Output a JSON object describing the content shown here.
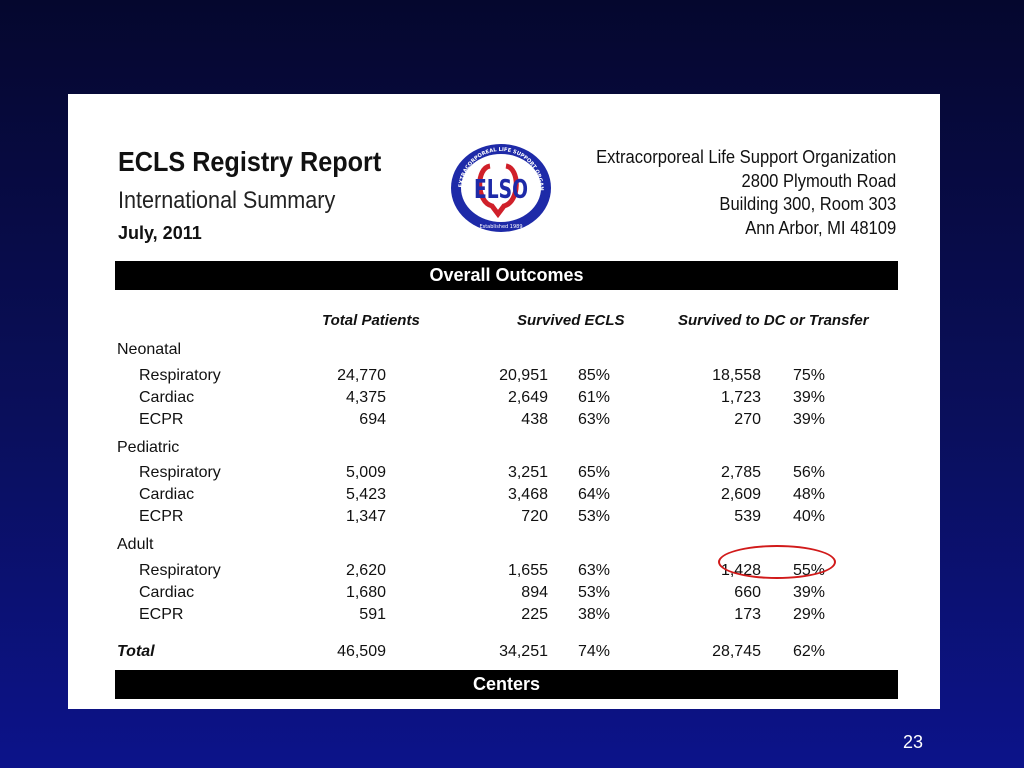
{
  "report": {
    "title": "ECLS Registry Report",
    "subtitle": "International Summary",
    "date": "July, 2011"
  },
  "logo": {
    "letters": "ELSO",
    "ring_text": "EXTRACORPOREAL LIFE SUPPORT ORGANIZATION",
    "established": "Established 1989"
  },
  "organization": {
    "name": "Extracorporeal Life Support Organization",
    "address_line1": "2800 Plymouth Road",
    "address_line2": "Building 300, Room 303",
    "address_line3": "Ann Arbor, MI 48109"
  },
  "sections": {
    "overall_outcomes": "Overall Outcomes",
    "centers": "Centers"
  },
  "table": {
    "headers": {
      "total_patients": "Total Patients",
      "survived_ecls": "Survived ECLS",
      "survived_dc": "Survived to DC or Transfer"
    },
    "groups": [
      {
        "name": "Neonatal",
        "rows": [
          {
            "label": "Respiratory",
            "total": "24,770",
            "ecls": "20,951",
            "ecls_pct": "85%",
            "dc": "18,558",
            "dc_pct": "75%"
          },
          {
            "label": "Cardiac",
            "total": "4,375",
            "ecls": "2,649",
            "ecls_pct": "61%",
            "dc": "1,723",
            "dc_pct": "39%"
          },
          {
            "label": "ECPR",
            "total": "694",
            "ecls": "438",
            "ecls_pct": "63%",
            "dc": "270",
            "dc_pct": "39%"
          }
        ]
      },
      {
        "name": "Pediatric",
        "rows": [
          {
            "label": "Respiratory",
            "total": "5,009",
            "ecls": "3,251",
            "ecls_pct": "65%",
            "dc": "2,785",
            "dc_pct": "56%"
          },
          {
            "label": "Cardiac",
            "total": "5,423",
            "ecls": "3,468",
            "ecls_pct": "64%",
            "dc": "2,609",
            "dc_pct": "48%"
          },
          {
            "label": "ECPR",
            "total": "1,347",
            "ecls": "720",
            "ecls_pct": "53%",
            "dc": "539",
            "dc_pct": "40%"
          }
        ]
      },
      {
        "name": "Adult",
        "rows": [
          {
            "label": "Respiratory",
            "total": "2,620",
            "ecls": "1,655",
            "ecls_pct": "63%",
            "dc": "1,428",
            "dc_pct": "55%"
          },
          {
            "label": "Cardiac",
            "total": "1,680",
            "ecls": "894",
            "ecls_pct": "53%",
            "dc": "660",
            "dc_pct": "39%"
          },
          {
            "label": "ECPR",
            "total": "591",
            "ecls": "225",
            "ecls_pct": "38%",
            "dc": "173",
            "dc_pct": "29%"
          }
        ]
      }
    ],
    "total": {
      "label": "Total",
      "total": "46,509",
      "ecls": "34,251",
      "ecls_pct": "74%",
      "dc": "28,745",
      "dc_pct": "62%"
    }
  },
  "slide_number": "23",
  "colors": {
    "background": "#0a0f5c",
    "highlight": "#d11a1a",
    "logo_blue": "#1e2aa8",
    "logo_red": "#d0202a"
  }
}
